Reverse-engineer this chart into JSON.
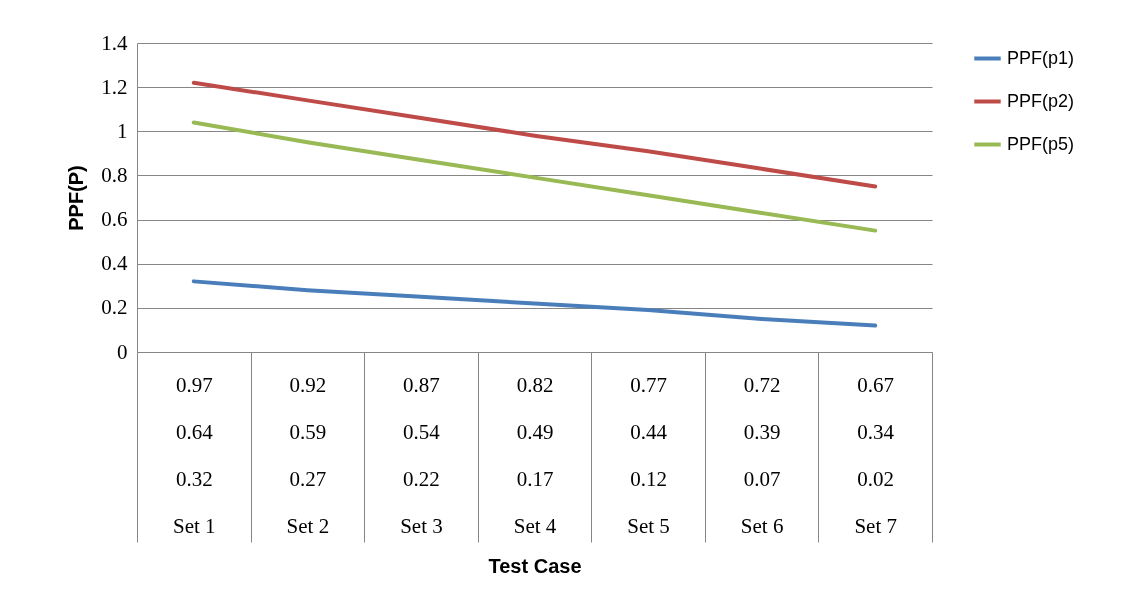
{
  "chart_data": {
    "type": "line",
    "xlabel": "Test Case",
    "ylabel": "PPF(P)",
    "categories": [
      "0.97\n0.64\n0.32\nSet 1",
      "0.92\n0.59\n0.27\nSet 2",
      "0.87\n0.54\n0.22\nSet 3",
      "0.82\n0.49\n0.17\nSet 4",
      "0.77\n0.44\n0.12\nSet 5",
      "0.72\n0.39\n0.07\nSet 6",
      "0.67\n0.34\n0.02\nSet 7"
    ],
    "series": [
      {
        "name": "PPF(p1)",
        "color": "#4a7ebb",
        "values": [
          0.32,
          0.28,
          0.25,
          0.22,
          0.19,
          0.15,
          0.12
        ]
      },
      {
        "name": "PPF(p2)",
        "color": "#be4b48",
        "values": [
          1.22,
          1.14,
          1.06,
          0.98,
          0.91,
          0.83,
          0.75
        ]
      },
      {
        "name": "PPF(p5)",
        "color": "#98b954",
        "values": [
          1.04,
          0.95,
          0.87,
          0.79,
          0.71,
          0.63,
          0.55
        ]
      }
    ],
    "ylim": [
      0,
      1.4
    ],
    "yticks": [
      0,
      0.2,
      0.4,
      0.6,
      0.8,
      1,
      1.2,
      1.4
    ],
    "grid": "y",
    "legend": "right",
    "marker": "none"
  }
}
